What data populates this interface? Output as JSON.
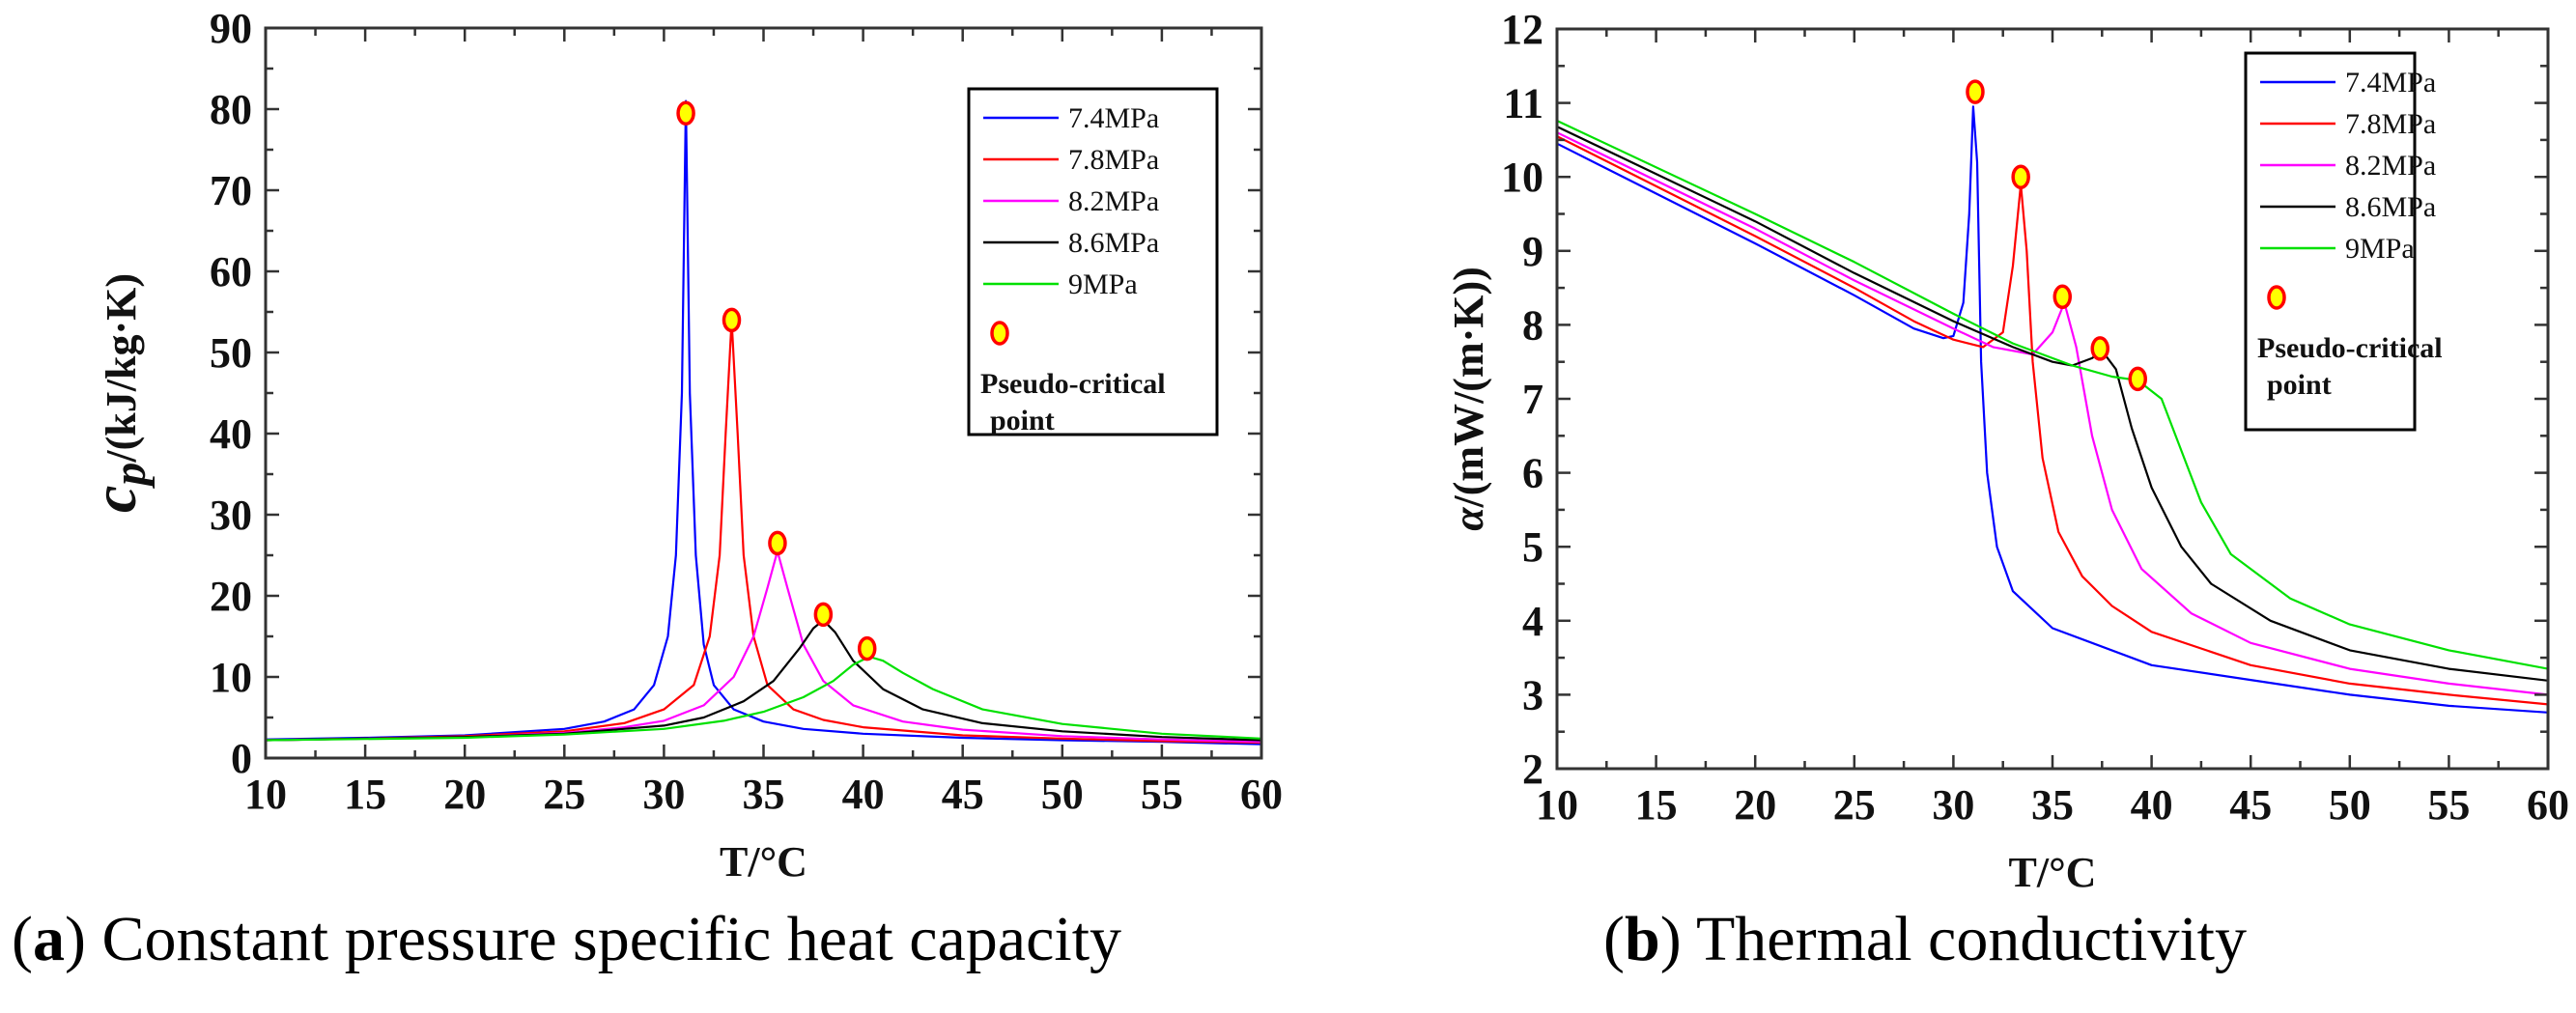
{
  "colors": {
    "7.4MPa": "#0000ff",
    "7.8MPa": "#ff0000",
    "8.2MPa": "#ff00ff",
    "8.6MPa": "#000000",
    "9MPa": "#00e000",
    "marker_fill": "#ffff00",
    "marker_edge": "#ff0000"
  },
  "captions": {
    "a_letter": "a",
    "a_text": " Constant pressure specific heat capacity",
    "b_letter": "b",
    "b_text": " Thermal conductivity"
  },
  "chart_data": [
    {
      "type": "line",
      "id": "cp",
      "title": "",
      "xlabel": "T/°C",
      "ylabel_main": "c",
      "ylabel_sub": "p",
      "ylabel_rest": "/(kJ/kg·K)",
      "xlim": [
        10,
        60
      ],
      "ylim": [
        0,
        90
      ],
      "xticks": [
        10,
        15,
        20,
        25,
        30,
        35,
        40,
        45,
        50,
        55,
        60
      ],
      "xtick_labels": [
        "10",
        "15",
        "20",
        "25",
        "30",
        "35",
        "40",
        "45",
        "50",
        "55",
        "60"
      ],
      "yticks": [
        0,
        10,
        20,
        30,
        40,
        50,
        60,
        70,
        80,
        90
      ],
      "ytick_labels": [
        "0",
        "10",
        "20",
        "30",
        "40",
        "50",
        "60",
        "70",
        "80",
        "90"
      ],
      "xminor": 2.5,
      "yminor": 5,
      "legend": {
        "position": "top-right",
        "marker_label_1": "Pseudo-critical",
        "marker_label_2": "point"
      },
      "series": [
        {
          "name": "7.4MPa",
          "x": [
            10,
            15,
            20,
            25,
            27,
            28.5,
            29.5,
            30.2,
            30.6,
            30.9,
            31.1,
            31.3,
            31.6,
            32,
            32.5,
            33.5,
            35,
            37,
            40,
            45,
            50,
            55,
            60
          ],
          "y": [
            2.3,
            2.5,
            2.8,
            3.6,
            4.5,
            6,
            9,
            15,
            25,
            45,
            81,
            45,
            25,
            14,
            9,
            6,
            4.5,
            3.6,
            3,
            2.5,
            2.2,
            2,
            1.7
          ]
        },
        {
          "name": "7.8MPa",
          "x": [
            10,
            15,
            20,
            25,
            28,
            30,
            31.5,
            32.3,
            32.8,
            33.1,
            33.4,
            33.7,
            34,
            34.5,
            35.2,
            36.5,
            38,
            40,
            45,
            50,
            55,
            60
          ],
          "y": [
            2.2,
            2.4,
            2.7,
            3.3,
            4.3,
            6,
            9,
            15,
            25,
            40,
            54,
            40,
            25,
            15,
            9,
            6,
            4.7,
            3.8,
            2.8,
            2.4,
            2.1,
            1.9
          ]
        },
        {
          "name": "8.2MPa",
          "x": [
            10,
            15,
            20,
            25,
            28,
            30,
            32,
            33.5,
            34.5,
            35.2,
            35.7,
            36.2,
            37,
            38,
            39.5,
            42,
            45,
            50,
            55,
            60
          ],
          "y": [
            2.2,
            2.4,
            2.6,
            3.1,
            3.8,
            4.6,
            6.5,
            10,
            15,
            21,
            25.5,
            21,
            14,
            9.5,
            6.5,
            4.5,
            3.5,
            2.7,
            2.3,
            2
          ]
        },
        {
          "name": "8.6MPa",
          "x": [
            10,
            20,
            25,
            30,
            32,
            34,
            35.5,
            36.8,
            37.5,
            38,
            38.6,
            39.5,
            41,
            43,
            46,
            50,
            55,
            60
          ],
          "y": [
            2.2,
            2.6,
            3,
            4,
            5,
            7,
            9.5,
            13.5,
            16,
            17,
            15.5,
            12,
            8.5,
            6,
            4.3,
            3.3,
            2.6,
            2.2
          ]
        },
        {
          "name": "9MPa",
          "x": [
            10,
            20,
            25,
            30,
            33,
            35,
            37,
            38.5,
            39.5,
            40.3,
            41,
            42,
            43.5,
            46,
            50,
            55,
            60
          ],
          "y": [
            2.2,
            2.5,
            2.9,
            3.6,
            4.6,
            5.7,
            7.5,
            9.5,
            11.5,
            12.5,
            12,
            10.5,
            8.5,
            6,
            4.2,
            3,
            2.4
          ]
        }
      ],
      "pseudo_critical_points": {
        "x": [
          31.1,
          33.4,
          35.7,
          38,
          40.2
        ],
        "y": [
          79.5,
          54,
          26.5,
          17.7,
          13.5
        ]
      }
    },
    {
      "type": "line",
      "id": "k",
      "title": "",
      "xlabel": "T/°C",
      "ylabel_main": "α",
      "ylabel_sub": "",
      "ylabel_rest": "/(mW/(m·K))",
      "xlim": [
        10,
        60
      ],
      "ylim": [
        2,
        12
      ],
      "xticks": [
        10,
        15,
        20,
        25,
        30,
        35,
        40,
        45,
        50,
        55,
        60
      ],
      "xtick_labels": [
        "10",
        "15",
        "20",
        "25",
        "30",
        "35",
        "40",
        "45",
        "50",
        "55",
        "60"
      ],
      "yticks": [
        2,
        3,
        4,
        5,
        6,
        7,
        8,
        9,
        10,
        11,
        12
      ],
      "ytick_labels": [
        "2",
        "3",
        "4",
        "5",
        "6",
        "7",
        "8",
        "9",
        "10",
        "11",
        "12"
      ],
      "xminor": 2.5,
      "yminor": 0.5,
      "legend": {
        "position": "top-right",
        "marker_label_1": "Pseudo-critical",
        "marker_label_2": "point"
      },
      "series": [
        {
          "name": "7.4MPa",
          "x": [
            10,
            20,
            25,
            28,
            29.5,
            30,
            30.5,
            30.8,
            31,
            31.2,
            31.4,
            31.7,
            32.2,
            33,
            35,
            40,
            45,
            50,
            55,
            60
          ],
          "y": [
            10.45,
            9.1,
            8.4,
            7.95,
            7.82,
            7.85,
            8.3,
            9.5,
            10.95,
            10.2,
            7.5,
            6,
            5,
            4.4,
            3.9,
            3.4,
            3.2,
            3.0,
            2.85,
            2.76
          ]
        },
        {
          "name": "7.8MPa",
          "x": [
            10,
            20,
            25,
            28,
            30,
            31.5,
            32.5,
            33,
            33.4,
            33.7,
            34,
            34.5,
            35.3,
            36.5,
            38,
            40,
            45,
            50,
            55,
            60
          ],
          "y": [
            10.55,
            9.2,
            8.5,
            8.05,
            7.8,
            7.7,
            7.9,
            8.8,
            9.9,
            9,
            7.5,
            6.2,
            5.2,
            4.6,
            4.2,
            3.85,
            3.4,
            3.15,
            3.0,
            2.87
          ]
        },
        {
          "name": "8.2MPa",
          "x": [
            10,
            20,
            25,
            30,
            32,
            34,
            35,
            35.6,
            36.2,
            37,
            38,
            39.5,
            42,
            45,
            50,
            55,
            60
          ],
          "y": [
            10.6,
            9.3,
            8.6,
            7.95,
            7.7,
            7.6,
            7.9,
            8.3,
            7.7,
            6.5,
            5.5,
            4.7,
            4.1,
            3.7,
            3.35,
            3.15,
            3.0
          ]
        },
        {
          "name": "8.6MPa",
          "x": [
            10,
            20,
            25,
            30,
            33,
            35,
            36,
            37,
            37.5,
            38.2,
            39,
            40,
            41.5,
            43,
            46,
            50,
            55,
            60
          ],
          "y": [
            10.68,
            9.4,
            8.7,
            8.05,
            7.7,
            7.5,
            7.45,
            7.55,
            7.65,
            7.4,
            6.6,
            5.8,
            5,
            4.5,
            4.0,
            3.6,
            3.35,
            3.19
          ]
        },
        {
          "name": "9MPa",
          "x": [
            10,
            20,
            25,
            30,
            33,
            36,
            38,
            39.3,
            40.5,
            41.5,
            42.5,
            44,
            47,
            50,
            55,
            60
          ],
          "y": [
            10.76,
            9.5,
            8.85,
            8.15,
            7.75,
            7.45,
            7.3,
            7.25,
            7.0,
            6.3,
            5.6,
            4.9,
            4.3,
            3.95,
            3.6,
            3.35
          ]
        }
      ],
      "pseudo_critical_points": {
        "x": [
          31.1,
          33.4,
          35.5,
          37.4,
          39.3
        ],
        "y": [
          11.15,
          10,
          8.38,
          7.68,
          7.27
        ]
      }
    }
  ]
}
